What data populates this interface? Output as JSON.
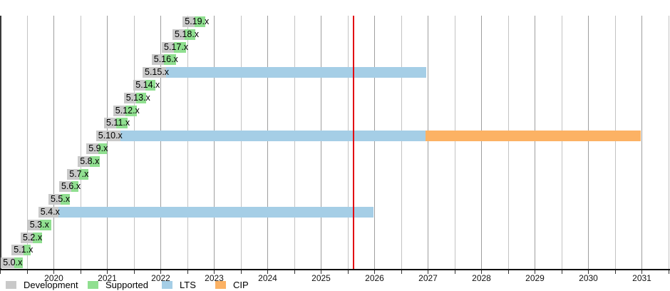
{
  "chart_data": {
    "type": "gantt",
    "x_axis": {
      "start_year": 2019,
      "end_year": 2031.5,
      "gridline_step_years": 0.5,
      "labeled_years": [
        2020,
        2021,
        2022,
        2023,
        2024,
        2025,
        2026,
        2027,
        2028,
        2029,
        2030,
        2031
      ],
      "grid": true
    },
    "today_marker_year": 2025.6,
    "colors": {
      "development": "#c9c9c9",
      "supported": "#90df90",
      "lts": "#a5cee6",
      "cip": "#fcb264",
      "today": "#e20613",
      "year_gridline": "#9e9e9e",
      "half_gridline": "#c3c3c3"
    },
    "legend": [
      {
        "key": "development",
        "label": "Development"
      },
      {
        "key": "supported",
        "label": "Supported"
      },
      {
        "key": "lts",
        "label": "LTS"
      },
      {
        "key": "cip",
        "label": "CIP"
      }
    ],
    "rows": [
      {
        "version": "5.19.x",
        "phases": [
          {
            "type": "development",
            "start": 2022.41,
            "end": 2022.63
          },
          {
            "type": "supported",
            "start": 2022.63,
            "end": 2022.83
          }
        ]
      },
      {
        "version": "5.18.x",
        "phases": [
          {
            "type": "development",
            "start": 2022.22,
            "end": 2022.45
          },
          {
            "type": "supported",
            "start": 2022.45,
            "end": 2022.65
          }
        ]
      },
      {
        "version": "5.17.x",
        "phases": [
          {
            "type": "development",
            "start": 2022.02,
            "end": 2022.25
          },
          {
            "type": "supported",
            "start": 2022.25,
            "end": 2022.47
          }
        ]
      },
      {
        "version": "5.16.x",
        "phases": [
          {
            "type": "development",
            "start": 2021.83,
            "end": 2022.06
          },
          {
            "type": "supported",
            "start": 2022.06,
            "end": 2022.29
          }
        ]
      },
      {
        "version": "5.15.x",
        "phases": [
          {
            "type": "development",
            "start": 2021.66,
            "end": 2022.1
          },
          {
            "type": "lts",
            "start": 2022.1,
            "end": 2026.97
          }
        ]
      },
      {
        "version": "5.14.x",
        "phases": [
          {
            "type": "development",
            "start": 2021.49,
            "end": 2021.71
          },
          {
            "type": "supported",
            "start": 2021.71,
            "end": 2021.9
          }
        ]
      },
      {
        "version": "5.13.x",
        "phases": [
          {
            "type": "development",
            "start": 2021.31,
            "end": 2021.54
          },
          {
            "type": "supported",
            "start": 2021.54,
            "end": 2021.73
          }
        ]
      },
      {
        "version": "5.12.x",
        "phases": [
          {
            "type": "development",
            "start": 2021.11,
            "end": 2021.34
          },
          {
            "type": "supported",
            "start": 2021.34,
            "end": 2021.55
          }
        ]
      },
      {
        "version": "5.11.x",
        "phases": [
          {
            "type": "development",
            "start": 2020.94,
            "end": 2021.17
          },
          {
            "type": "supported",
            "start": 2021.17,
            "end": 2021.38
          }
        ]
      },
      {
        "version": "5.10.x",
        "phases": [
          {
            "type": "development",
            "start": 2020.79,
            "end": 2021.25
          },
          {
            "type": "lts",
            "start": 2021.25,
            "end": 2026.95
          },
          {
            "type": "cip",
            "start": 2026.95,
            "end": 2030.98
          }
        ]
      },
      {
        "version": "5.9.x",
        "phases": [
          {
            "type": "development",
            "start": 2020.61,
            "end": 2020.83
          },
          {
            "type": "supported",
            "start": 2020.83,
            "end": 2020.99
          }
        ]
      },
      {
        "version": "5.8.x",
        "phases": [
          {
            "type": "development",
            "start": 2020.45,
            "end": 2020.67
          },
          {
            "type": "supported",
            "start": 2020.67,
            "end": 2020.86
          }
        ]
      },
      {
        "version": "5.7.x",
        "phases": [
          {
            "type": "development",
            "start": 2020.25,
            "end": 2020.47
          },
          {
            "type": "supported",
            "start": 2020.47,
            "end": 2020.65
          }
        ]
      },
      {
        "version": "5.6.x",
        "phases": [
          {
            "type": "development",
            "start": 2020.1,
            "end": 2020.33
          },
          {
            "type": "supported",
            "start": 2020.33,
            "end": 2020.46
          }
        ]
      },
      {
        "version": "5.5.x",
        "phases": [
          {
            "type": "development",
            "start": 2019.9,
            "end": 2020.13
          },
          {
            "type": "supported",
            "start": 2020.13,
            "end": 2020.3
          }
        ]
      },
      {
        "version": "5.4.x",
        "phases": [
          {
            "type": "development",
            "start": 2019.71,
            "end": 2020.09
          },
          {
            "type": "lts",
            "start": 2020.09,
            "end": 2025.98
          }
        ]
      },
      {
        "version": "5.3.x",
        "phases": [
          {
            "type": "development",
            "start": 2019.51,
            "end": 2019.74
          },
          {
            "type": "supported",
            "start": 2019.74,
            "end": 2019.95
          }
        ]
      },
      {
        "version": "5.2.x",
        "phases": [
          {
            "type": "development",
            "start": 2019.38,
            "end": 2019.61
          },
          {
            "type": "supported",
            "start": 2019.61,
            "end": 2019.78
          }
        ]
      },
      {
        "version": "5.1.x",
        "phases": [
          {
            "type": "development",
            "start": 2019.21,
            "end": 2019.43
          },
          {
            "type": "supported",
            "start": 2019.43,
            "end": 2019.57
          }
        ]
      },
      {
        "version": "5.0.x",
        "phases": [
          {
            "type": "development",
            "start": 2019.01,
            "end": 2019.26
          },
          {
            "type": "supported",
            "start": 2019.26,
            "end": 2019.42
          }
        ]
      }
    ]
  }
}
